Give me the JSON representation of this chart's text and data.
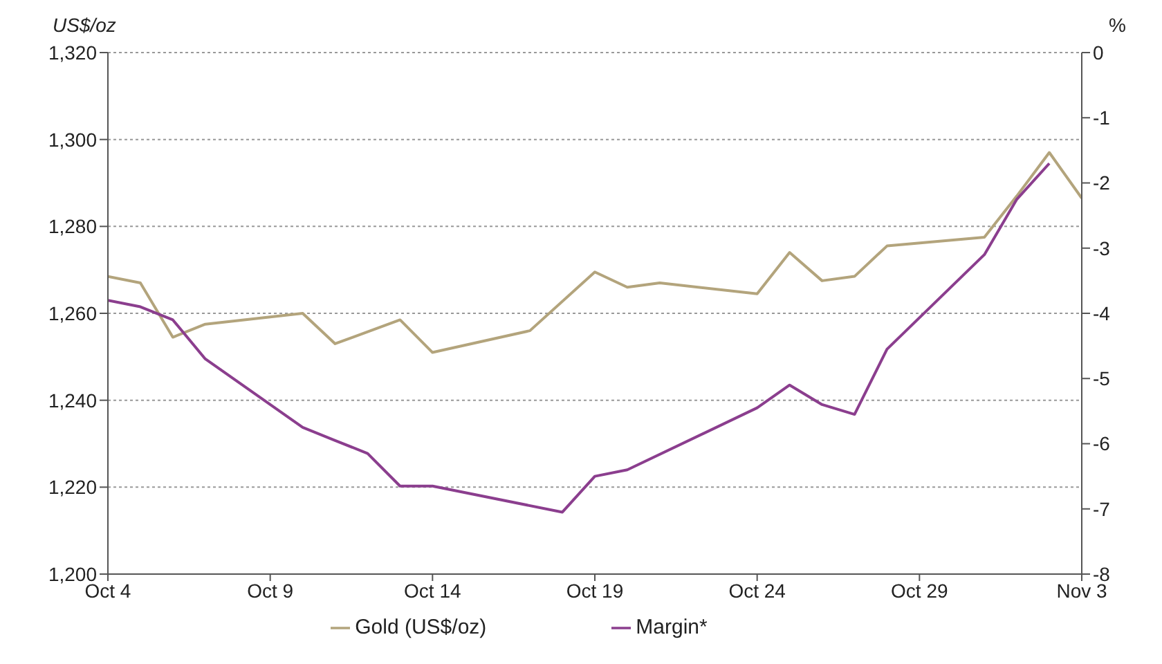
{
  "chart_data": {
    "type": "line",
    "ylabel": "US$/oz",
    "y2label": "%",
    "xlim": [
      "--10-04",
      "--11-03"
    ],
    "xticks": [
      {
        "value": "--10-04",
        "label": "Oct 4"
      },
      {
        "value": "--10-09",
        "label": "Oct 9"
      },
      {
        "value": "--10-14",
        "label": "Oct 14"
      },
      {
        "value": "--10-19",
        "label": "Oct 19"
      },
      {
        "value": "--10-24",
        "label": "Oct 24"
      },
      {
        "value": "--10-29",
        "label": "Oct 29"
      },
      {
        "value": "--11-03",
        "label": "Nov 3"
      }
    ],
    "ylim": [
      1200,
      1320
    ],
    "yticks": [
      {
        "value": 1200,
        "label": "1,200"
      },
      {
        "value": 1220,
        "label": "1,220"
      },
      {
        "value": 1240,
        "label": "1,240"
      },
      {
        "value": 1260,
        "label": "1,260"
      },
      {
        "value": 1280,
        "label": "1,280"
      },
      {
        "value": 1300,
        "label": "1,300"
      },
      {
        "value": 1320,
        "label": "1,320"
      }
    ],
    "y2lim": [
      -8,
      0
    ],
    "y2ticks": [
      -8,
      -7,
      -6,
      -5,
      -4,
      -3,
      -2,
      -1,
      0
    ],
    "grid": "y",
    "legend": "bottom",
    "marker": "none",
    "line_style": "solid",
    "series": [
      {
        "name": "Gold (US$/oz)",
        "color": "#b3a47c",
        "x": [
          "--10-04",
          "--10-05",
          "--10-06",
          "--10-07",
          "--10-10",
          "--10-11",
          "--10-13",
          "--10-14",
          "--10-17",
          "--10-19",
          "--10-20",
          "--10-21",
          "--10-24",
          "--10-25",
          "--10-26",
          "--10-27",
          "--10-28",
          "--10-31",
          "--11-01",
          "--11-02",
          "--11-03"
        ],
        "values": [
          1268.5,
          1267,
          1254.5,
          1257.5,
          1260,
          1253,
          1258.5,
          1251,
          1256,
          1269.5,
          1266,
          1267,
          1264.5,
          1274,
          1267.5,
          1268.5,
          1275.5,
          1277.5,
          1287,
          1297,
          1286.5
        ]
      },
      {
        "name": "Margin*",
        "color": "#8b3e8e",
        "axis": "y2",
        "x": [
          "--10-04",
          "--10-05",
          "--10-06",
          "--10-07",
          "--10-10",
          "--10-11",
          "--10-12",
          "--10-13",
          "--10-14",
          "--10-18",
          "--10-19",
          "--10-20",
          "--10-24",
          "--10-25",
          "--10-26",
          "--10-27",
          "--10-28",
          "--10-31",
          "--11-01",
          "--11-02"
        ],
        "values": [
          -3.8,
          -3.9,
          -4.1,
          -4.7,
          -5.75,
          -5.95,
          -6.15,
          -6.65,
          -6.65,
          -7.05,
          -6.5,
          -6.4,
          -5.45,
          -5.1,
          -5.4,
          -5.55,
          -4.55,
          -3.1,
          -2.25,
          -1.7
        ]
      }
    ]
  }
}
